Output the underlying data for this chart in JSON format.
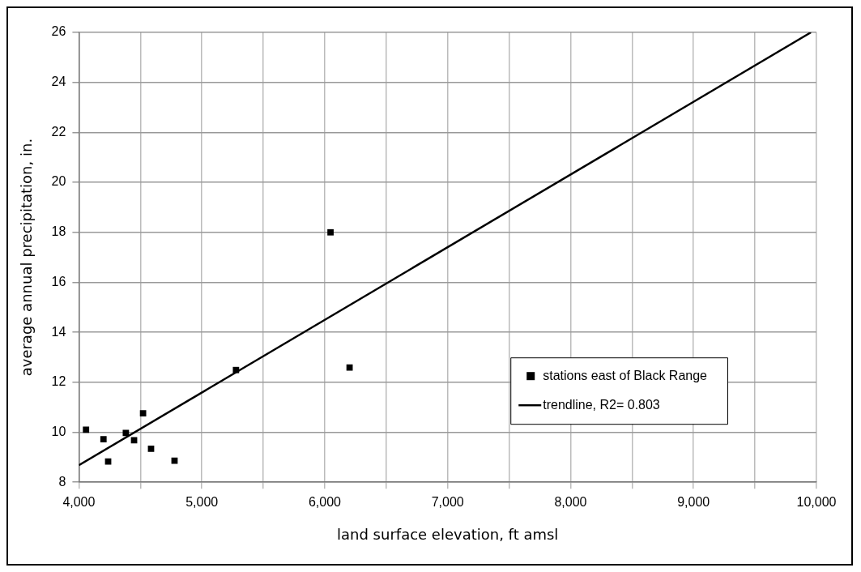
{
  "chart_data": {
    "type": "scatter",
    "xlabel": "land surface elevation, ft amsl",
    "ylabel": "average annual precipitation, in.",
    "series": [
      {
        "name": "stations east of Black Range",
        "type": "scatter",
        "color": "#000000",
        "marker": "square",
        "x": [
          4058,
          4200,
          4238,
          4382,
          4449,
          4522,
          4587,
          4778,
          5278,
          6202,
          6047
        ],
        "values": [
          10.1,
          9.72,
          8.83,
          9.97,
          9.68,
          10.76,
          9.34,
          8.86,
          12.49,
          12.59,
          18.0
        ]
      },
      {
        "name": "trendline, R2= 0.803",
        "type": "line",
        "color": "#000000",
        "marker": "none",
        "line_style": "solid",
        "x": [
          4000,
          9955
        ],
        "values": [
          8.68,
          26.0
        ]
      }
    ],
    "xlim": [
      4000,
      10000
    ],
    "xticks": [
      {
        "value": 4000,
        "label": "4,000"
      },
      {
        "value": 4500,
        "label": null
      },
      {
        "value": 5000,
        "label": "5,000"
      },
      {
        "value": 5500,
        "label": null
      },
      {
        "value": 6000,
        "label": "6,000"
      },
      {
        "value": 6500,
        "label": null
      },
      {
        "value": 7000,
        "label": "7,000"
      },
      {
        "value": 7500,
        "label": null
      },
      {
        "value": 8000,
        "label": "8,000"
      },
      {
        "value": 8500,
        "label": null
      },
      {
        "value": 9000,
        "label": "9,000"
      },
      {
        "value": 9500,
        "label": null
      },
      {
        "value": 10000,
        "label": "10,000"
      }
    ],
    "ylim": [
      8,
      26
    ],
    "yticks": [
      8,
      10,
      12,
      14,
      16,
      18,
      20,
      22,
      24,
      26
    ],
    "grid": true,
    "legend": "bottom right"
  }
}
